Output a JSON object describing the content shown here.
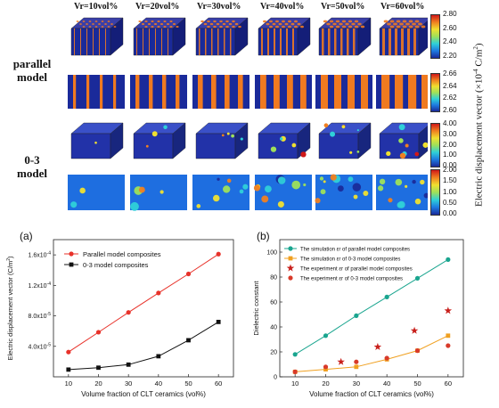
{
  "top": {
    "column_labels": [
      "Vr=10vol%",
      "Vr=20vol%",
      "Vr=30vol%",
      "Vr=40vol%",
      "Vr=50vol%",
      "Vr=60vol%"
    ],
    "row_label_parallel": [
      "parallel",
      "model"
    ],
    "row_label_03": [
      "0-3",
      "model"
    ],
    "colorbar_title": "Electric displacement vector (×10",
    "colorbar_title_exp": "-4",
    "colorbar_title_unit": " C/m",
    "colorbar_title_sup2": "2",
    "colorbar_title_end": ")",
    "colorbars": [
      {
        "ticks": [
          "2.80",
          "2.60",
          "2.40",
          "2.20"
        ]
      },
      {
        "ticks": [
          "2.66",
          "2.64",
          "2.62",
          "2.60"
        ]
      },
      {
        "ticks": [
          "4.00",
          "3.00",
          "2.00",
          "1.00",
          "0.00"
        ]
      },
      {
        "ticks": [
          "2.00",
          "1.50",
          "1.00",
          "0.50",
          "0.00"
        ]
      }
    ],
    "colors": {
      "low": "#1a2a9a",
      "high": "#d01818",
      "orange": "#f07a20"
    }
  },
  "chart_data": [
    {
      "panel": "(a)",
      "type": "line",
      "xlabel": "Volume fraction of CLT ceramics (vol%)",
      "ylabel": "Electric displacement vector (C/m",
      "ylabel_sup": "2",
      "ylabel_end": ")",
      "x": [
        10,
        20,
        30,
        40,
        50,
        60
      ],
      "xlim": [
        5,
        65
      ],
      "ylim": [
        0,
        0.00018
      ],
      "yticks": [
        4e-05,
        8e-05,
        0.00012,
        0.00016
      ],
      "ytick_labels": [
        [
          "4.0x10",
          "-5"
        ],
        [
          "8.0x10",
          "-5"
        ],
        [
          "1.2x10",
          "-4"
        ],
        [
          "1.6x10",
          "-4"
        ]
      ],
      "xticks": [
        "10",
        "20",
        "30",
        "40",
        "50",
        "60"
      ],
      "legend_position": "top-left",
      "series": [
        {
          "name": "Parallel model composites",
          "color": "#e8322a",
          "marker": "circle",
          "values": [
            3.25e-05,
            5.85e-05,
            8.45e-05,
            0.00011,
            0.000135,
            0.000161
          ]
        },
        {
          "name": "0-3 model composites",
          "color": "#111111",
          "marker": "square",
          "values": [
            9.5e-06,
            1.2e-05,
            1.6e-05,
            2.7e-05,
            4.8e-05,
            7.2e-05
          ]
        }
      ]
    },
    {
      "panel": "(b)",
      "type": "scatter",
      "xlabel": "Volume fraction of CLT ceramics (vol%)",
      "ylabel": "Dielectric constant",
      "x": [
        10,
        20,
        30,
        40,
        50,
        60
      ],
      "xlim": [
        5,
        65
      ],
      "ylim": [
        0,
        110
      ],
      "yticks": [
        0,
        20,
        40,
        60,
        80,
        100
      ],
      "ytick_labels": [
        "0",
        "20",
        "40",
        "60",
        "80",
        "100"
      ],
      "xticks": [
        "10",
        "20",
        "30",
        "40",
        "50",
        "60"
      ],
      "legend_position": "top-left",
      "series": [
        {
          "name": "The simulation εr of parallel model composites",
          "color": "#1aa58f",
          "marker": "circle",
          "style": "line",
          "values": [
            18,
            33,
            49,
            64,
            79,
            94
          ]
        },
        {
          "name": "The simulation εr of 0-3 model composites",
          "color": "#f0a020",
          "marker": "square",
          "style": "line",
          "values": [
            4,
            6,
            8,
            14,
            21,
            33
          ]
        },
        {
          "name": "The experiment εr of parallel model composites",
          "color": "#c8201c",
          "marker": "star",
          "style": "points",
          "xvals": [
            25,
            37,
            49,
            60
          ],
          "values": [
            12,
            24,
            37,
            53
          ]
        },
        {
          "name": "The experiment εr of 0-3 model composites",
          "color": "#d83a2a",
          "marker": "circle",
          "style": "points",
          "xvals": [
            10,
            20,
            30,
            40,
            50,
            60
          ],
          "values": [
            4,
            8,
            12,
            15,
            21,
            25
          ]
        }
      ]
    }
  ]
}
